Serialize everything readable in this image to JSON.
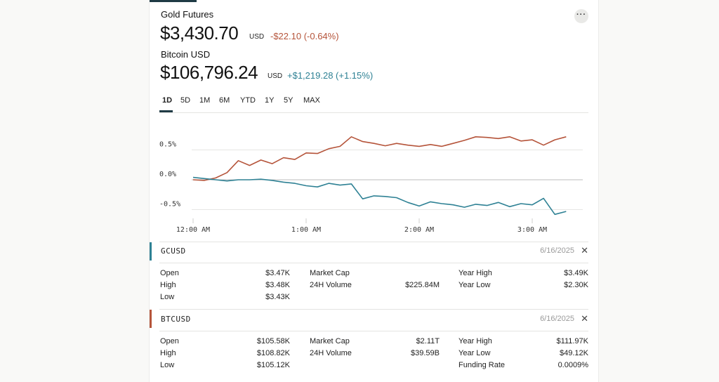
{
  "gold": {
    "name": "Gold Futures",
    "price": "$3,430.70",
    "currency": "USD",
    "change": "-$22.10 (-0.64%)",
    "color": "#b5543a"
  },
  "btc": {
    "name": "Bitcoin USD",
    "price": "$106,796.24",
    "currency": "USD",
    "change": "+$1,219.28 (+1.15%)",
    "color": "#2e8194"
  },
  "more_label": "···",
  "tabs": [
    "1D",
    "5D",
    "1M",
    "6M",
    "YTD",
    "1Y",
    "5Y",
    "MAX"
  ],
  "active_tab": "1D",
  "chart_data": {
    "type": "line",
    "y_ticks": [
      "0.5%",
      "0.0%",
      "-0.5%"
    ],
    "x_ticks": [
      "12:00 AM",
      "1:00 AM",
      "2:00 AM",
      "3:00 AM"
    ],
    "ylim": [
      -0.55,
      0.8
    ],
    "series": [
      {
        "name": "GCUSD",
        "color": "#b5543a",
        "x": [
          0,
          0.1,
          0.2,
          0.3,
          0.4,
          0.5,
          0.6,
          0.7,
          0.8,
          0.9,
          1.0,
          1.1,
          1.2,
          1.3,
          1.4,
          1.5,
          1.6,
          1.7,
          1.8,
          1.9,
          2.0,
          2.1,
          2.2,
          2.3,
          2.4,
          2.5,
          2.6,
          2.7,
          2.8,
          2.9,
          3.0,
          3.1,
          3.2,
          3.3
        ],
        "values": [
          0.0,
          -0.01,
          0.03,
          0.12,
          0.32,
          0.24,
          0.33,
          0.27,
          0.37,
          0.34,
          0.45,
          0.44,
          0.52,
          0.56,
          0.72,
          0.64,
          0.61,
          0.57,
          0.61,
          0.58,
          0.56,
          0.59,
          0.56,
          0.61,
          0.66,
          0.72,
          0.71,
          0.69,
          0.72,
          0.65,
          0.67,
          0.58,
          0.67,
          0.72
        ]
      },
      {
        "name": "BTCUSD",
        "color": "#2e8194",
        "x": [
          0,
          0.1,
          0.2,
          0.3,
          0.4,
          0.5,
          0.6,
          0.7,
          0.8,
          0.9,
          1.0,
          1.1,
          1.2,
          1.3,
          1.4,
          1.5,
          1.6,
          1.7,
          1.8,
          1.9,
          2.0,
          2.1,
          2.2,
          2.3,
          2.4,
          2.5,
          2.6,
          2.7,
          2.8,
          2.9,
          3.0,
          3.1,
          3.2,
          3.3
        ],
        "values": [
          0.04,
          0.02,
          0.0,
          -0.02,
          0.0,
          0.0,
          0.01,
          -0.01,
          -0.04,
          -0.06,
          -0.1,
          -0.12,
          -0.06,
          -0.09,
          -0.07,
          -0.32,
          -0.27,
          -0.28,
          -0.3,
          -0.38,
          -0.44,
          -0.37,
          -0.4,
          -0.42,
          -0.46,
          -0.41,
          -0.43,
          -0.38,
          -0.45,
          -0.4,
          -0.42,
          -0.31,
          -0.58,
          -0.53
        ]
      }
    ]
  },
  "rows": [
    {
      "symbol": "GCUSD",
      "date": "6/16/2025",
      "close": "✕",
      "color": "#2e8194",
      "stats": [
        [
          {
            "label": "Open",
            "value": "$3.47K"
          },
          {
            "label": "High",
            "value": "$3.48K"
          },
          {
            "label": "Low",
            "value": "$3.43K"
          }
        ],
        [
          {
            "label": "Market Cap",
            "value": ""
          },
          {
            "label": "24H Volume",
            "value": "$225.84M"
          }
        ],
        [
          {
            "label": "Year High",
            "value": "$3.49K"
          },
          {
            "label": "Year Low",
            "value": "$2.30K"
          }
        ]
      ]
    },
    {
      "symbol": "BTCUSD",
      "date": "6/16/2025",
      "close": "✕",
      "color": "#b5543a",
      "stats": [
        [
          {
            "label": "Open",
            "value": "$105.58K"
          },
          {
            "label": "High",
            "value": "$108.82K"
          },
          {
            "label": "Low",
            "value": "$105.12K"
          }
        ],
        [
          {
            "label": "Market Cap",
            "value": "$2.11T"
          },
          {
            "label": "24H Volume",
            "value": "$39.59B"
          }
        ],
        [
          {
            "label": "Year High",
            "value": "$111.97K"
          },
          {
            "label": "Year Low",
            "value": "$49.12K"
          },
          {
            "label": "Funding Rate",
            "value": "0.0009%"
          }
        ]
      ]
    }
  ]
}
